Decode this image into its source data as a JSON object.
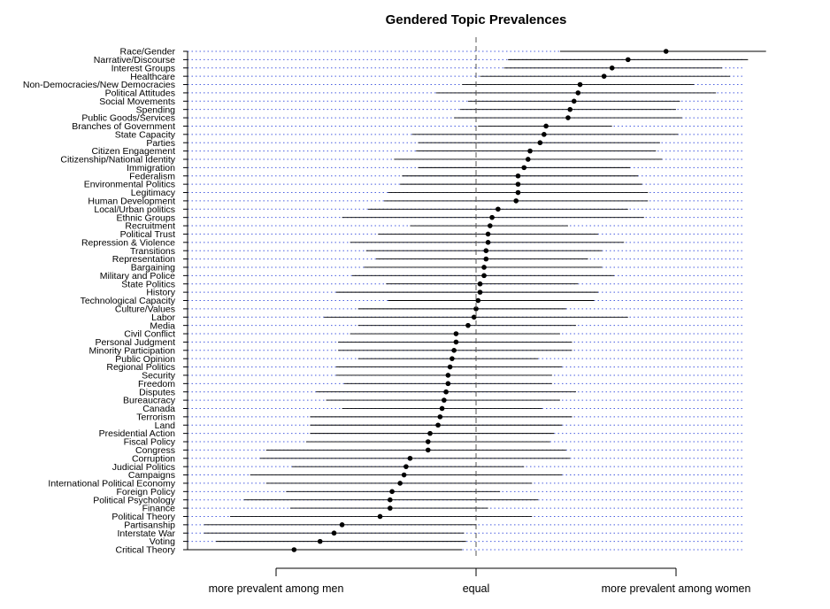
{
  "chart_data": {
    "type": "dot-interval",
    "title": "Gendered Topic Prevalences",
    "x_ticks": [
      "more prevalent among men",
      "equal",
      "more prevalent among women"
    ],
    "x_tick_values": [
      -1,
      0,
      1
    ],
    "xlim": [
      -1.45,
      1.45
    ],
    "grid": true,
    "grid_color": "#4a5fe0",
    "categories": [
      "Race/Gender",
      "Narrative/Discourse",
      "Interest Groups",
      "Healthcare",
      "Non-Democracies/New Democracies",
      "Political Attitudes",
      "Social Movements",
      "Spending",
      "Public Goods/Services",
      "Branches of Government",
      "State Capacity",
      "Parties",
      "Citizen Engagement",
      "Citizenship/National Identity",
      "Immigration",
      "Federalism",
      "Environmental Politics",
      "Legitimacy",
      "Human Development",
      "Local/Urban politics",
      "Ethnic Groups",
      "Recruitment",
      "Political Trust",
      "Repression & Violence",
      "Transitions",
      "Representation",
      "Bargaining",
      "Military and Police",
      "State Politics",
      "History",
      "Technological Capacity",
      "Culture/Values",
      "Labor",
      "Media",
      "Civil Conflict",
      "Personal Judgment",
      "Minority Participation",
      "Public Opinion",
      "Regional Politics",
      "Security",
      "Freedom",
      "Disputes",
      "Bureaucracy",
      "Canada",
      "Terrorism",
      "Land",
      "Presidential Action",
      "Fiscal Policy",
      "Congress",
      "Corruption",
      "Judicial Politics",
      "Campaigns",
      "International Political Economy",
      "Foreign Policy",
      "Political Psychology",
      "Finance",
      "Political Theory",
      "Partisanship",
      "Interstate War",
      "Voting",
      "Critical Theory"
    ],
    "estimates": [
      0.95,
      0.76,
      0.68,
      0.64,
      0.52,
      0.51,
      0.49,
      0.47,
      0.46,
      0.35,
      0.34,
      0.32,
      0.27,
      0.26,
      0.24,
      0.21,
      0.21,
      0.21,
      0.2,
      0.11,
      0.08,
      0.07,
      0.06,
      0.06,
      0.05,
      0.05,
      0.04,
      0.04,
      0.02,
      0.02,
      0.01,
      0.0,
      -0.01,
      -0.04,
      -0.1,
      -0.1,
      -0.11,
      -0.12,
      -0.13,
      -0.14,
      -0.14,
      -0.15,
      -0.16,
      -0.17,
      -0.18,
      -0.19,
      -0.23,
      -0.24,
      -0.24,
      -0.33,
      -0.35,
      -0.36,
      -0.38,
      -0.42,
      -0.43,
      -0.43,
      -0.48,
      -0.67,
      -0.71,
      -0.78,
      -0.91
    ],
    "lower": [
      0.42,
      0.16,
      0.14,
      0.02,
      -0.07,
      -0.2,
      -0.04,
      -0.08,
      -0.11,
      0.01,
      -0.32,
      -0.29,
      -0.3,
      -0.41,
      -0.29,
      -0.37,
      -0.38,
      -0.44,
      -0.46,
      -0.54,
      -0.67,
      -0.33,
      -0.49,
      -0.63,
      -0.55,
      -0.5,
      -0.56,
      -0.62,
      -0.45,
      -0.7,
      -0.44,
      -0.59,
      -0.76,
      -0.59,
      -0.63,
      -0.69,
      -0.69,
      -0.59,
      -0.7,
      -0.7,
      -0.66,
      -0.8,
      -0.75,
      -0.67,
      -0.83,
      -0.83,
      -0.83,
      -0.85,
      -1.05,
      -1.08,
      -0.92,
      -1.13,
      -1.05,
      -0.95,
      -1.16,
      -0.93,
      -1.23,
      -1.36,
      -1.36,
      -1.3,
      -1.45
    ],
    "upper": [
      1.45,
      1.36,
      1.23,
      1.27,
      1.09,
      1.2,
      1.02,
      1.0,
      1.03,
      0.68,
      1.01,
      0.92,
      0.9,
      0.93,
      0.77,
      0.81,
      0.83,
      0.86,
      0.86,
      0.76,
      0.84,
      0.46,
      0.61,
      0.74,
      0.63,
      0.56,
      0.63,
      0.69,
      0.51,
      0.61,
      0.59,
      0.45,
      0.76,
      0.5,
      0.42,
      0.48,
      0.48,
      0.31,
      0.43,
      0.38,
      0.38,
      0.5,
      0.42,
      0.33,
      0.48,
      0.43,
      0.39,
      0.37,
      0.45,
      0.47,
      0.24,
      0.43,
      0.28,
      0.12,
      0.31,
      0.06,
      0.28,
      0.0,
      -0.06,
      -0.05,
      -0.07
    ]
  }
}
